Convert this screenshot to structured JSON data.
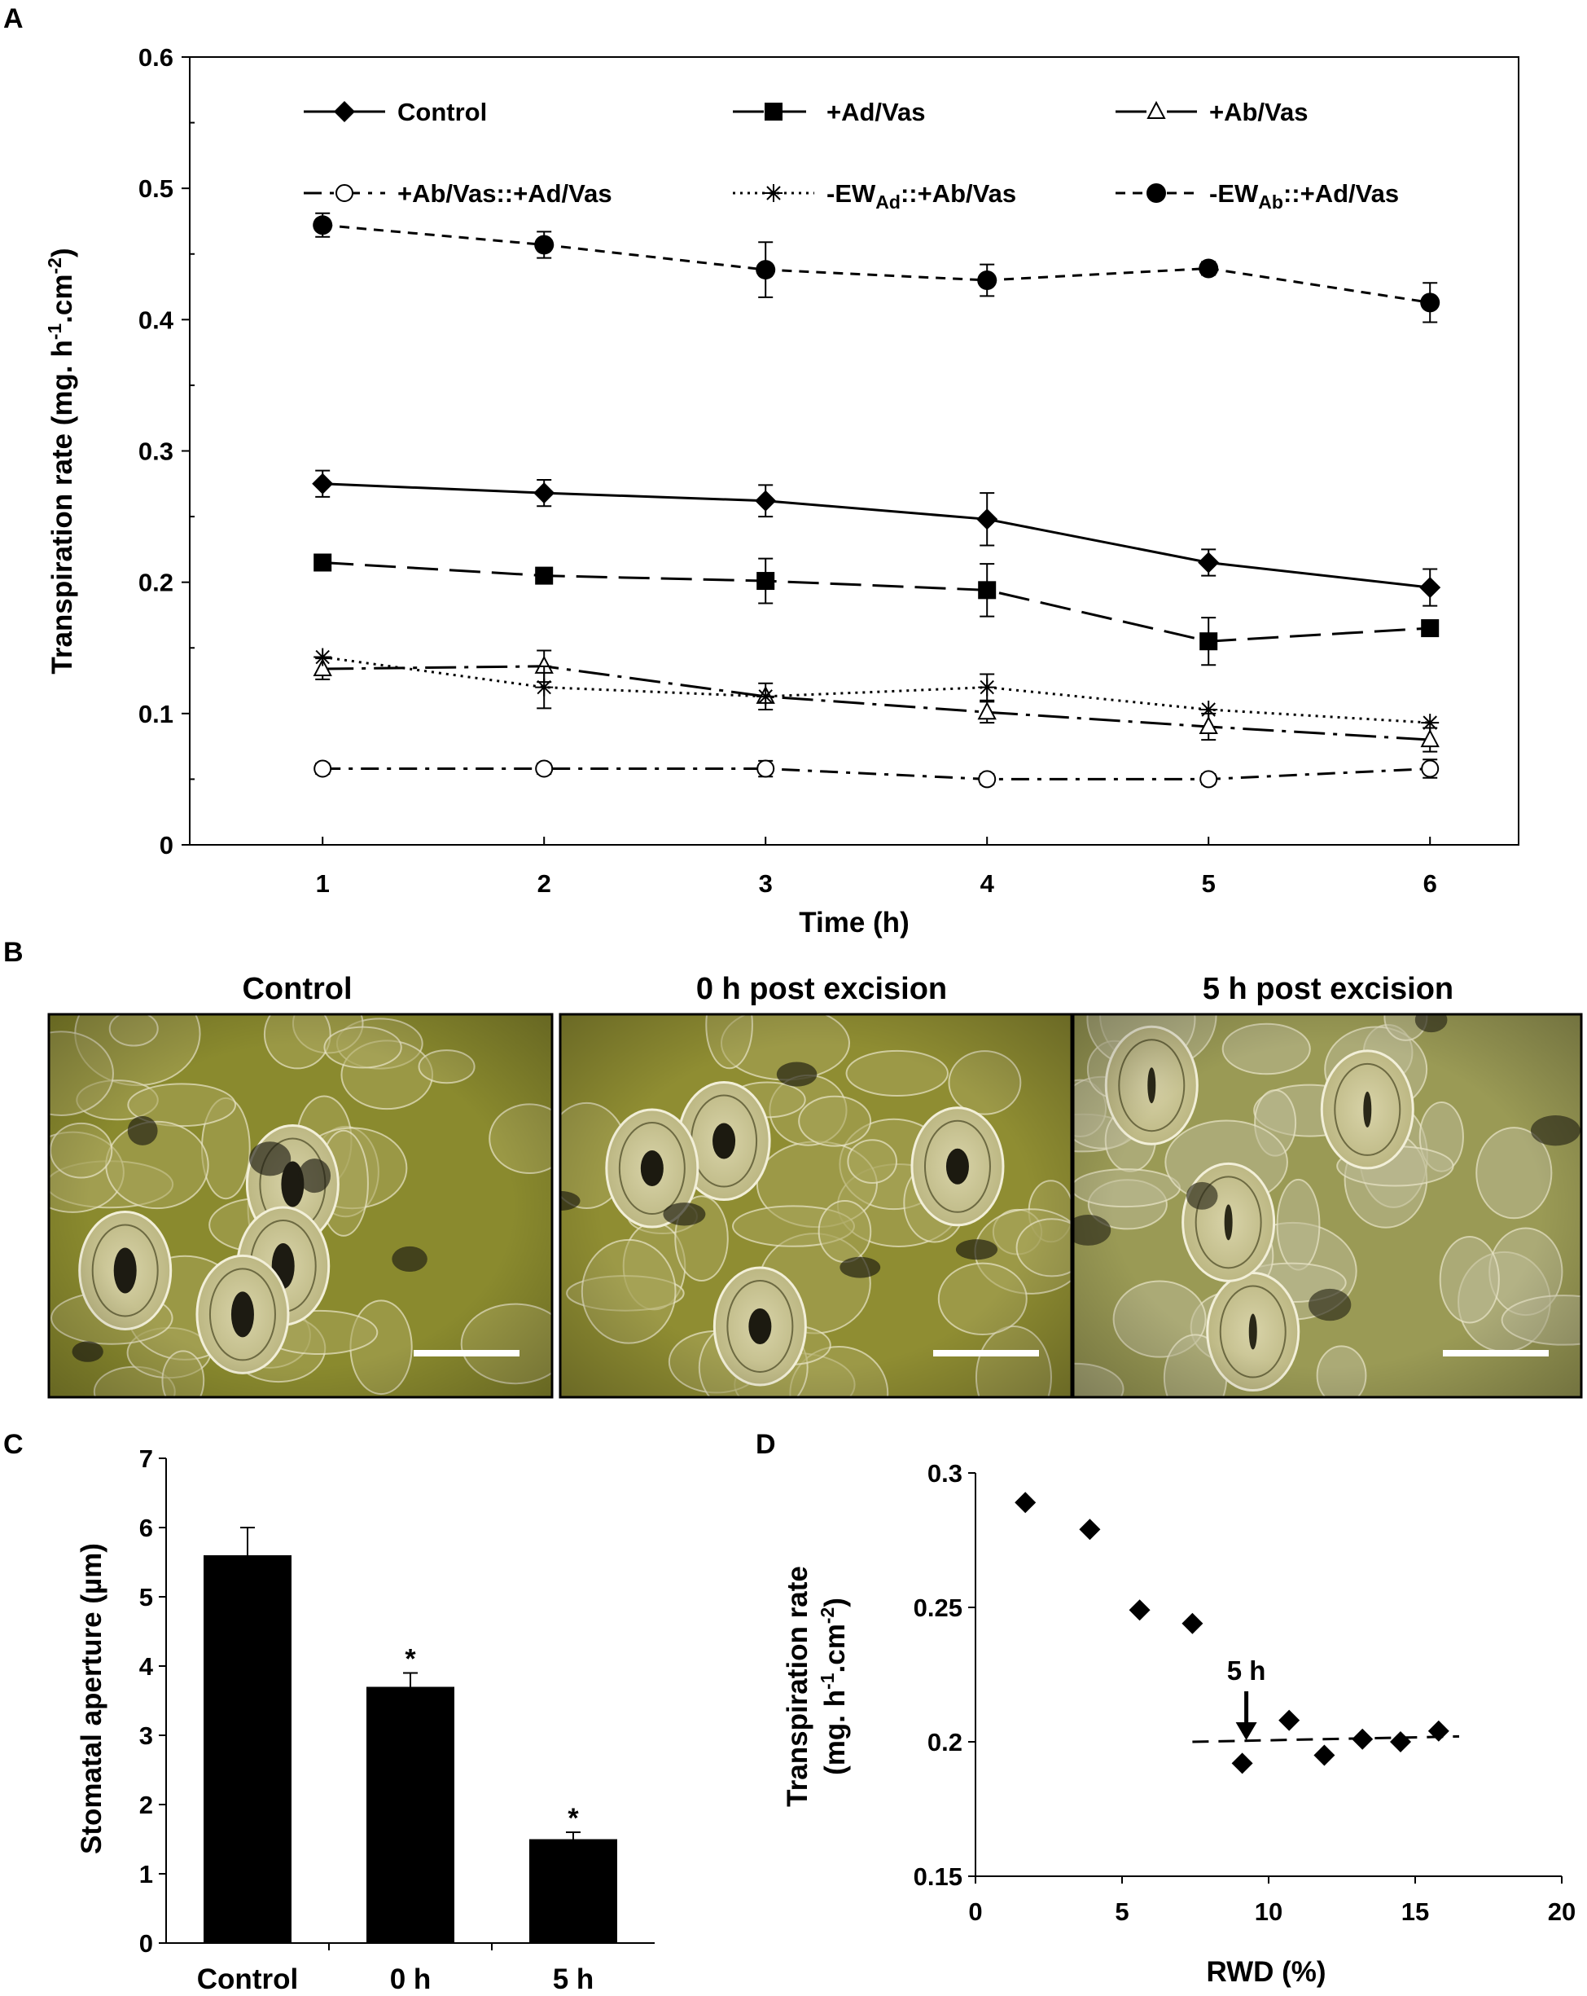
{
  "panels": {
    "a": {
      "letter": "A"
    },
    "b": {
      "letter": "B",
      "images": [
        {
          "title": "Control",
          "dark": "#1d1b12",
          "base": "#8a8a2e"
        },
        {
          "title": "0 h post excision",
          "dark": "#1c1a10",
          "base": "#8f8d32"
        },
        {
          "title": "5 h post excision",
          "dark": "#2a2818",
          "base": "#9a9a55"
        }
      ]
    },
    "c": {
      "letter": "C"
    },
    "d": {
      "letter": "D"
    }
  },
  "chart_data": [
    {
      "id": "A",
      "type": "line",
      "xlabel": "Time (h)",
      "ylabel": "Transpiration rate (mg. h",
      "ylabel_sup1": "-1",
      "ylabel_mid": ".cm",
      "ylabel_sup2": "-2",
      "ylabel_end": ")",
      "xlim": [
        0.4,
        6.4
      ],
      "ylim": [
        0,
        0.6
      ],
      "x": [
        1,
        2,
        3,
        4,
        5,
        6
      ],
      "xticks": [
        "1",
        "2",
        "3",
        "4",
        "5",
        "6"
      ],
      "yticks": [
        "0",
        "0.1",
        "0.2",
        "0.3",
        "0.4",
        "0.5",
        "0.6"
      ],
      "series": [
        {
          "name": "Control",
          "marker": "diamond",
          "dash": "",
          "values": [
            0.275,
            0.268,
            0.262,
            0.248,
            0.215,
            0.196
          ],
          "err": [
            0.01,
            0.01,
            0.012,
            0.02,
            0.01,
            0.014
          ]
        },
        {
          "name": "+Ad/Vas",
          "marker": "square",
          "dash": "38,14",
          "values": [
            0.215,
            0.205,
            0.201,
            0.194,
            0.155,
            0.165
          ],
          "err": [
            0.0,
            0.0,
            0.017,
            0.02,
            0.018,
            0.0
          ]
        },
        {
          "name": "+Ab/Vas",
          "marker": "triangle",
          "dash": "38,10,5,10",
          "values": [
            0.134,
            0.136,
            0.113,
            0.101,
            0.09,
            0.08
          ],
          "err": [
            0.008,
            0.012,
            0.01,
            0.008,
            0.01,
            0.009
          ]
        },
        {
          "name": "+Ab/Vas::+Ad/Vas",
          "marker": "circle-open",
          "dash": "22,10,5,10",
          "values": [
            0.058,
            0.058,
            0.058,
            0.05,
            0.05,
            0.058
          ],
          "err": [
            0.004,
            0.004,
            0.006,
            0.004,
            0.004,
            0.007
          ]
        },
        {
          "name": "-EW",
          "name_sub": "Ad",
          "name_end": "::+Ab/Vas",
          "marker": "asterisk",
          "dash": "3,6",
          "values": [
            0.143,
            0.12,
            0.113,
            0.12,
            0.103,
            0.093
          ],
          "err": [
            0.0,
            0.016,
            0.0,
            0.01,
            0.0,
            0.0
          ]
        },
        {
          "name": "-EW",
          "name_sub": "Ab",
          "name_end": "::+Ad/Vas",
          "marker": "circle-filled",
          "dash": "12,9",
          "values": [
            0.472,
            0.457,
            0.438,
            0.43,
            0.439,
            0.413
          ],
          "err": [
            0.009,
            0.01,
            0.021,
            0.012,
            0.005,
            0.015
          ]
        }
      ]
    },
    {
      "id": "C",
      "type": "bar",
      "ylabel": "Stomatal aperture (µm)",
      "categories": [
        "Control",
        "0 h",
        "5 h"
      ],
      "values": [
        5.6,
        3.7,
        1.5
      ],
      "err": [
        0.4,
        0.2,
        0.1
      ],
      "annotations": [
        "",
        "*",
        "*"
      ],
      "ylim": [
        0,
        7
      ],
      "yticks": [
        "0",
        "1",
        "2",
        "3",
        "4",
        "5",
        "6",
        "7"
      ]
    },
    {
      "id": "D",
      "type": "scatter",
      "xlabel": "RWD (%)",
      "ylabel_line1": "Transpiration rate",
      "ylabel_line2": "(mg. h",
      "ylabel_sup1": "-1",
      "ylabel_mid": ".cm",
      "ylabel_sup2": "-2",
      "ylabel_end": ")",
      "x": [
        1.7,
        3.9,
        5.6,
        7.4,
        9.1,
        10.7,
        11.9,
        13.2,
        14.5,
        15.8
      ],
      "y": [
        0.289,
        0.279,
        0.249,
        0.244,
        0.192,
        0.208,
        0.195,
        0.201,
        0.2,
        0.204
      ],
      "trend": {
        "x": [
          7.4,
          16.5
        ],
        "y": [
          0.2,
          0.202
        ]
      },
      "annotation": {
        "text": "5 h",
        "x": 9.1,
        "y": 0.2
      },
      "xlim": [
        0,
        20
      ],
      "ylim": [
        0.15,
        0.3
      ],
      "xticks": [
        "0",
        "5",
        "10",
        "15",
        "20"
      ],
      "yticks": [
        "0.15",
        "0.2",
        "0.25",
        "0.3"
      ]
    }
  ]
}
